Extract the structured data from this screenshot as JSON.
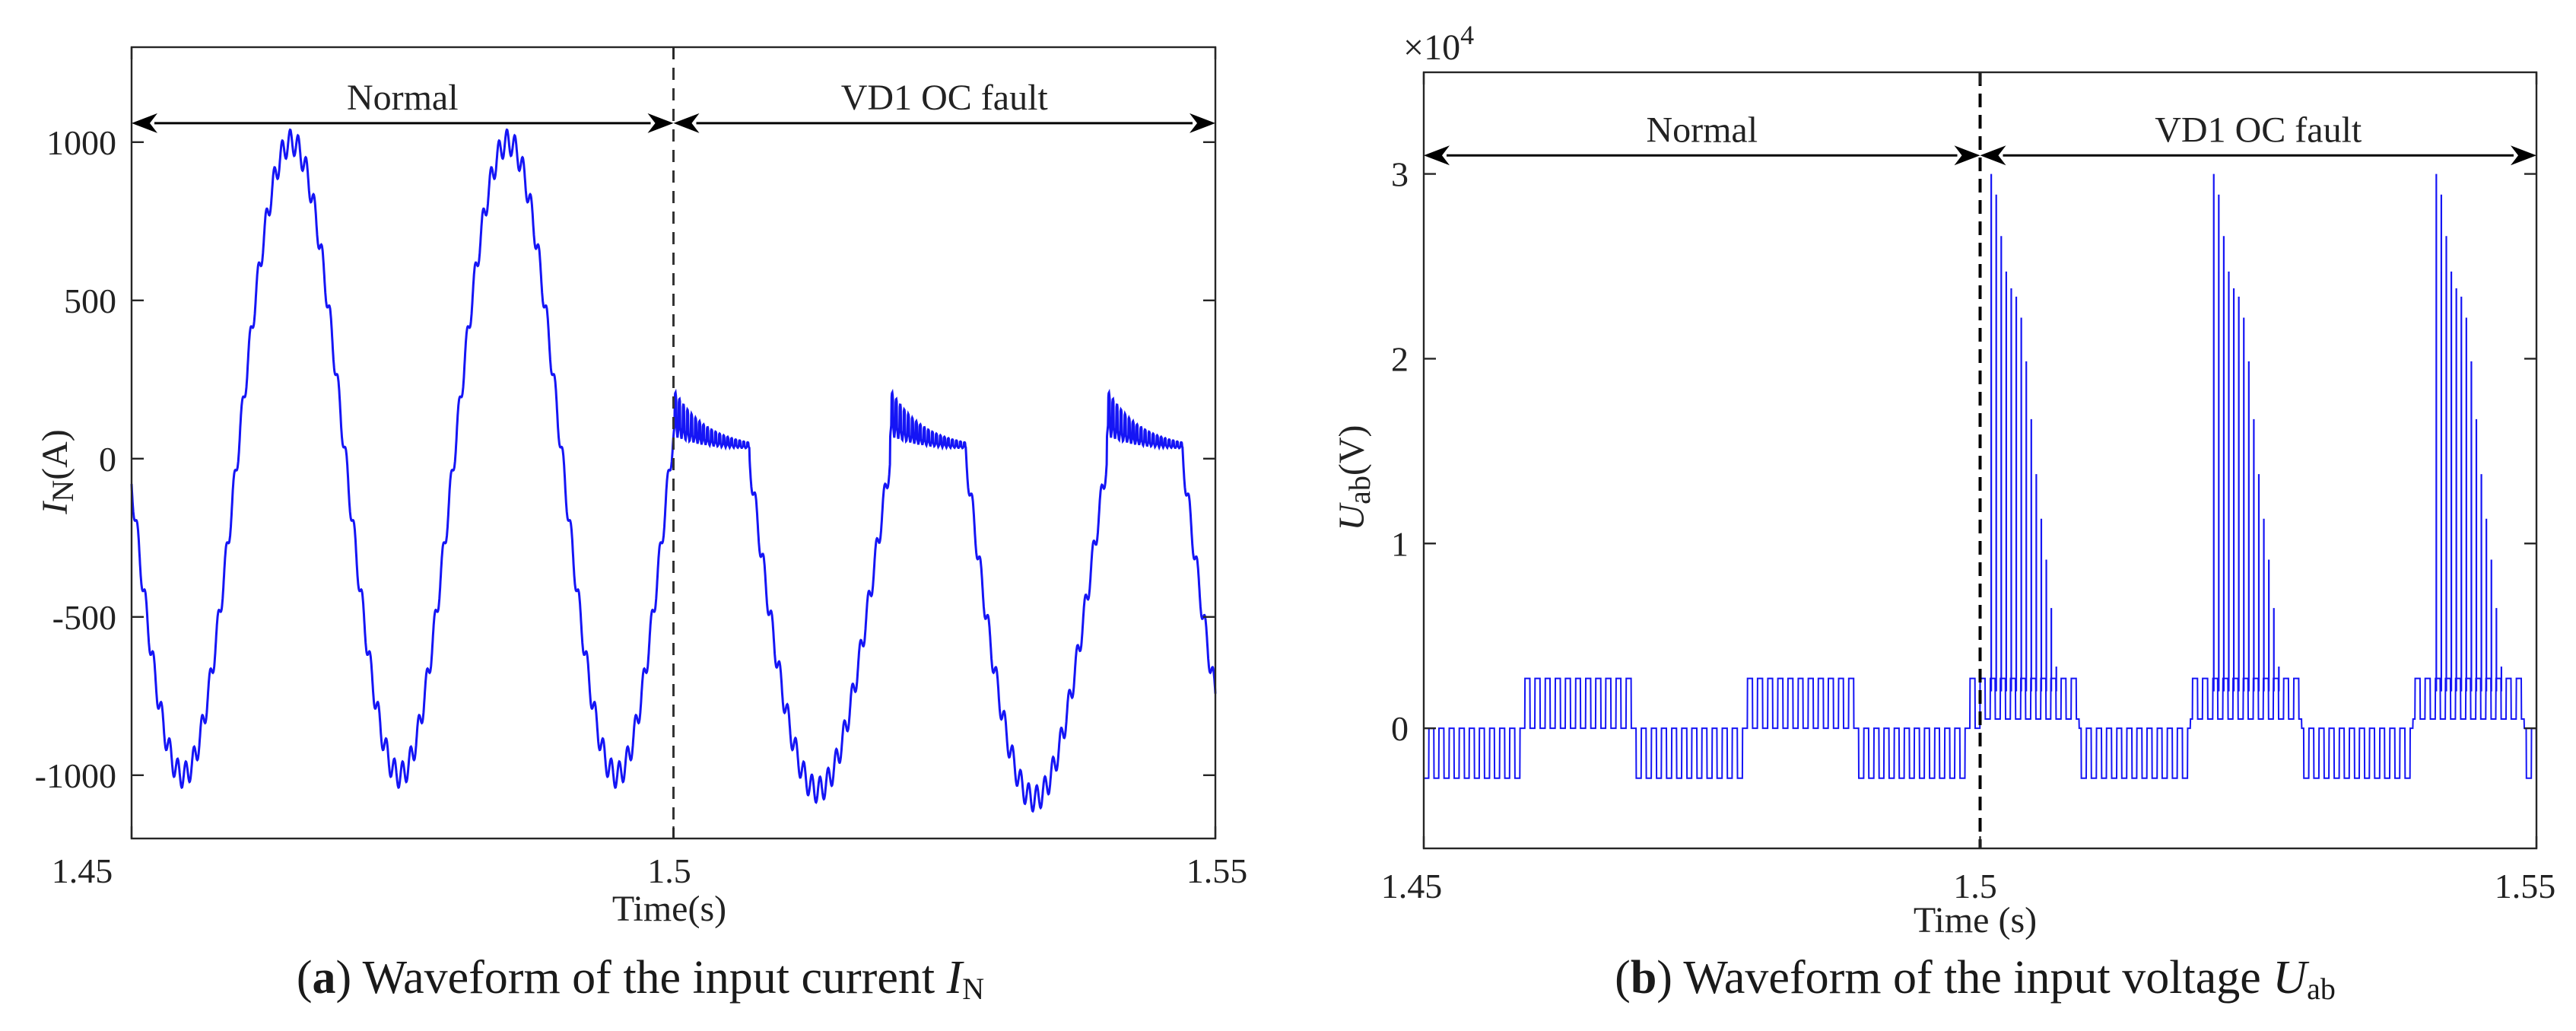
{
  "chart_data": [
    {
      "id": "a",
      "type": "line",
      "series_color": "#1515f5",
      "xlabel": "Time(s)",
      "ylabel_main": "I",
      "ylabel_sub": "N",
      "ylabel_unit": "(A)",
      "xlim": [
        1.45,
        1.55
      ],
      "ylim": [
        -1200,
        1300
      ],
      "xticks": [
        1.45,
        1.5,
        1.55
      ],
      "xtick_labels": [
        "1.45",
        "1.5",
        "1.55"
      ],
      "yticks": [
        -1000,
        -500,
        0,
        500,
        1000
      ],
      "ytick_labels": [
        "-1000",
        "-500",
        "0",
        "500",
        "1000"
      ],
      "fault_time": 1.5,
      "annotations": [
        {
          "text": "Normal",
          "from": 1.45,
          "to": 1.5,
          "y": 1060
        },
        {
          "text": "VD1 OC fault",
          "from": 1.5,
          "to": 1.55,
          "y": 1060
        }
      ],
      "caption_label": "a",
      "caption_text": " Waveform of the input current ",
      "caption_symbol": "I",
      "caption_sub": "N",
      "normal_amplitude": 1000,
      "frequency_hz": 50,
      "ripple_amplitude": 40,
      "fault_minimums": [
        -1130,
        -1160
      ],
      "fault_peak": 190
    },
    {
      "id": "b",
      "type": "line",
      "series_color": "#1515f5",
      "xlabel": "Time (s)",
      "ylabel_main": "U",
      "ylabel_sub": "ab",
      "ylabel_unit": "(V)",
      "multiplier": "×10",
      "multiplier_exp": "4",
      "xlim": [
        1.45,
        1.55
      ],
      "ylim": [
        -0.65,
        3.55
      ],
      "xticks": [
        1.45,
        1.5,
        1.55
      ],
      "xtick_labels": [
        "1.45",
        "1.5",
        "1.55"
      ],
      "yticks": [
        0,
        1,
        2,
        3
      ],
      "ytick_labels": [
        "0",
        "1",
        "2",
        "3"
      ],
      "fault_time": 1.5,
      "annotations": [
        {
          "text": "Normal",
          "from": 1.45,
          "to": 1.5,
          "y": 3.1
        },
        {
          "text": "VD1 OC fault",
          "from": 1.5,
          "to": 1.55,
          "y": 3.1
        }
      ],
      "caption_label": "b",
      "caption_text": " Waveform of the input voltage ",
      "caption_symbol": "U",
      "caption_sub": "ab",
      "normal_level": 0.27,
      "spike_peak": 3.0,
      "fault_spike_bursts_start": [
        1.501,
        1.521,
        1.541
      ]
    }
  ]
}
